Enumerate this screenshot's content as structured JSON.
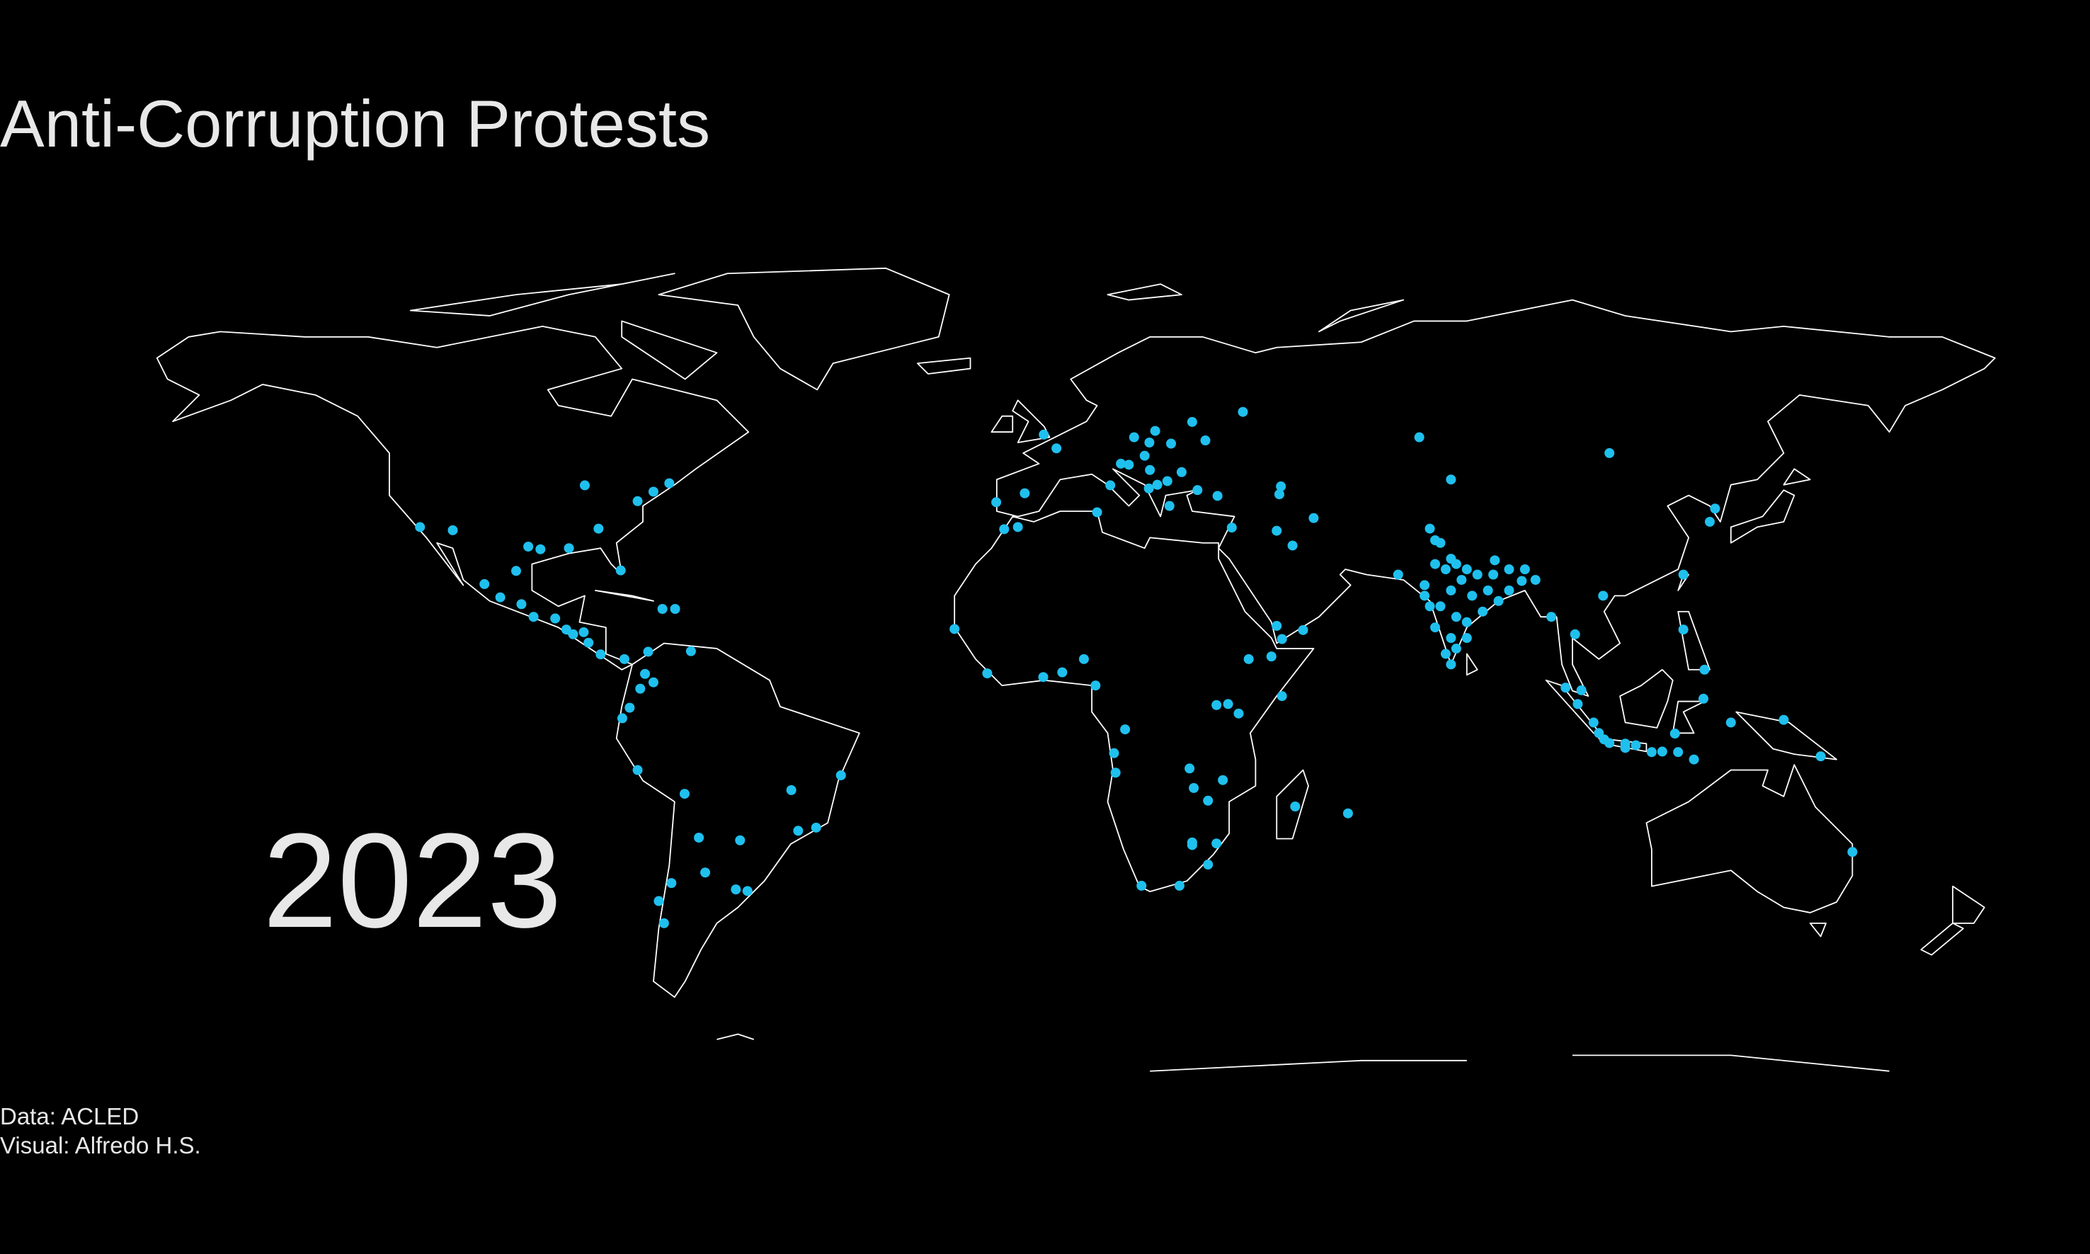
{
  "title": "Anti-Corruption Protests",
  "year": "2023",
  "credits": [
    "Data: ACLED",
    "Visual: Alfredo H.S."
  ],
  "events": [
    {
      "lon": 77,
      "lat": 28
    },
    {
      "lon": 78,
      "lat": 27
    },
    {
      "lon": 80,
      "lat": 26
    },
    {
      "lon": 82,
      "lat": 25
    },
    {
      "lon": 85,
      "lat": 25
    },
    {
      "lon": 88,
      "lat": 22
    },
    {
      "lon": 73,
      "lat": 19
    },
    {
      "lon": 75,
      "lat": 19
    },
    {
      "lon": 77,
      "lat": 13
    },
    {
      "lon": 80,
      "lat": 13
    },
    {
      "lon": 78,
      "lat": 17
    },
    {
      "lon": 76,
      "lat": 10
    },
    {
      "lon": 72,
      "lat": 23
    },
    {
      "lon": 75,
      "lat": 31
    },
    {
      "lon": 77,
      "lat": 22
    },
    {
      "lon": 81,
      "lat": 21
    },
    {
      "lon": 84,
      "lat": 22
    },
    {
      "lon": 86,
      "lat": 20
    },
    {
      "lon": 83,
      "lat": 18
    },
    {
      "lon": 79,
      "lat": 24
    },
    {
      "lon": 76,
      "lat": 26
    },
    {
      "lon": 74,
      "lat": 27
    },
    {
      "lon": 80,
      "lat": 16
    },
    {
      "lon": 77,
      "lat": 8
    },
    {
      "lon": 74,
      "lat": 15
    },
    {
      "lon": 88,
      "lat": 26
    },
    {
      "lon": 91,
      "lat": 26
    },
    {
      "lon": 93,
      "lat": 24
    },
    {
      "lon": 72,
      "lat": 21
    },
    {
      "lon": 78,
      "lat": 11
    },
    {
      "lon": 106,
      "lat": -6.2
    },
    {
      "lon": 107,
      "lat": -6.9
    },
    {
      "lon": 110,
      "lat": -7
    },
    {
      "lon": 112,
      "lat": -7.3
    },
    {
      "lon": 115,
      "lat": -8.6
    },
    {
      "lon": 117,
      "lat": -8.5
    },
    {
      "lon": 120,
      "lat": -8.6
    },
    {
      "lon": 110,
      "lat": -7.8
    },
    {
      "lon": 98.7,
      "lat": 3.6
    },
    {
      "lon": 101,
      "lat": 0.5
    },
    {
      "lon": 104,
      "lat": -3
    },
    {
      "lon": 105,
      "lat": -5
    },
    {
      "lon": 119.4,
      "lat": -5.1
    },
    {
      "lon": 124.8,
      "lat": 1.5
    },
    {
      "lon": 130,
      "lat": -3
    },
    {
      "lon": 140,
      "lat": -2.5
    },
    {
      "lon": 123,
      "lat": -10
    },
    {
      "lon": 121,
      "lat": 14.6
    },
    {
      "lon": 125,
      "lat": 7
    },
    {
      "lon": 101.7,
      "lat": 3.1
    },
    {
      "lon": 100.5,
      "lat": 13.7
    },
    {
      "lon": 105.8,
      "lat": 21
    },
    {
      "lon": 96,
      "lat": 17
    },
    {
      "lon": 90.4,
      "lat": 23.8
    },
    {
      "lon": 85.3,
      "lat": 27.7
    },
    {
      "lon": 67,
      "lat": 25
    },
    {
      "lon": 74,
      "lat": 31.5
    },
    {
      "lon": 73,
      "lat": 33.7
    },
    {
      "lon": 127,
      "lat": 37.5
    },
    {
      "lon": 126,
      "lat": 35
    },
    {
      "lon": 121,
      "lat": 25
    },
    {
      "lon": 107,
      "lat": 48
    },
    {
      "lon": 71,
      "lat": 51
    },
    {
      "lon": 77,
      "lat": 43
    },
    {
      "lon": 44,
      "lat": 33.3
    },
    {
      "lon": 47,
      "lat": 30.5
    },
    {
      "lon": 35.5,
      "lat": 33.9
    },
    {
      "lon": 51,
      "lat": 35.7
    },
    {
      "lon": 32.8,
      "lat": 39.9
    },
    {
      "lon": 29,
      "lat": 41
    },
    {
      "lon": 44,
      "lat": 15.3
    },
    {
      "lon": 45,
      "lat": 12.8
    },
    {
      "lon": 49,
      "lat": 14.5
    },
    {
      "lon": 45,
      "lat": 2
    },
    {
      "lon": 43,
      "lat": 9.5
    },
    {
      "lon": 36.8,
      "lat": -1.3
    },
    {
      "lon": 34.8,
      "lat": 0.5
    },
    {
      "lon": 32.6,
      "lat": 0.3
    },
    {
      "lon": 38.7,
      "lat": 9
    },
    {
      "lon": 3.4,
      "lat": 6.5
    },
    {
      "lon": 7.5,
      "lat": 9
    },
    {
      "lon": -0.2,
      "lat": 5.6
    },
    {
      "lon": -10.8,
      "lat": 6.3
    },
    {
      "lon": -17,
      "lat": 14.7
    },
    {
      "lon": -7.6,
      "lat": 33.6
    },
    {
      "lon": -5,
      "lat": 34
    },
    {
      "lon": 10,
      "lat": 36.8
    },
    {
      "lon": 9.7,
      "lat": 4
    },
    {
      "lon": 15.3,
      "lat": -4.3
    },
    {
      "lon": 27.5,
      "lat": -11.7
    },
    {
      "lon": 13.2,
      "lat": -8.8
    },
    {
      "lon": 13.5,
      "lat": -12.5
    },
    {
      "lon": 28.3,
      "lat": -15.4
    },
    {
      "lon": 31,
      "lat": -17.8
    },
    {
      "lon": 33.8,
      "lat": -13.9
    },
    {
      "lon": 32.6,
      "lat": -25.9
    },
    {
      "lon": 28,
      "lat": -26.2
    },
    {
      "lon": 31,
      "lat": -29.9
    },
    {
      "lon": 18.4,
      "lat": -33.9
    },
    {
      "lon": 25.6,
      "lat": -33.9
    },
    {
      "lon": 28,
      "lat": -25.7
    },
    {
      "lon": 47.5,
      "lat": -18.9
    },
    {
      "lon": 57.5,
      "lat": -20.2
    },
    {
      "lon": 21,
      "lat": 52.2
    },
    {
      "lon": 19.9,
      "lat": 50
    },
    {
      "lon": 17,
      "lat": 51
    },
    {
      "lon": 20,
      "lat": 44.8
    },
    {
      "lon": 19,
      "lat": 47.5
    },
    {
      "lon": 26,
      "lat": 44.4
    },
    {
      "lon": 23.3,
      "lat": 42.7
    },
    {
      "lon": 21.4,
      "lat": 42
    },
    {
      "lon": 19.8,
      "lat": 41.3
    },
    {
      "lon": 14.5,
      "lat": 46
    },
    {
      "lon": 16,
      "lat": 45.8
    },
    {
      "lon": 30.5,
      "lat": 50.4
    },
    {
      "lon": 24,
      "lat": 49.8
    },
    {
      "lon": 37.6,
      "lat": 55.8
    },
    {
      "lon": 44.5,
      "lat": 40.2
    },
    {
      "lon": 44.8,
      "lat": 41.7
    },
    {
      "lon": 2.3,
      "lat": 48.9
    },
    {
      "lon": -3.7,
      "lat": 40.4
    },
    {
      "lon": 12.5,
      "lat": 41.9
    },
    {
      "lon": 23.7,
      "lat": 38
    },
    {
      "lon": -0.1,
      "lat": 51.5
    },
    {
      "lon": -9.1,
      "lat": 38.7
    },
    {
      "lon": 28,
      "lat": 53.9
    },
    {
      "lon": -99,
      "lat": 19.4
    },
    {
      "lon": -103,
      "lat": 20.7
    },
    {
      "lon": -100,
      "lat": 25.7
    },
    {
      "lon": -106,
      "lat": 23.2
    },
    {
      "lon": -96.7,
      "lat": 17
    },
    {
      "lon": -92.6,
      "lat": 16.7
    },
    {
      "lon": -90.5,
      "lat": 14.6
    },
    {
      "lon": -89.2,
      "lat": 13.7
    },
    {
      "lon": -87.2,
      "lat": 14.1
    },
    {
      "lon": -86.3,
      "lat": 12.1
    },
    {
      "lon": -84,
      "lat": 9.9
    },
    {
      "lon": -79.5,
      "lat": 9
    },
    {
      "lon": -74,
      "lat": 4.6
    },
    {
      "lon": -75.6,
      "lat": 6.2
    },
    {
      "lon": -76.5,
      "lat": 3.4
    },
    {
      "lon": -66.9,
      "lat": 10.5
    },
    {
      "lon": -72.3,
      "lat": 18.5
    },
    {
      "lon": -69.9,
      "lat": 18.5
    },
    {
      "lon": -78.5,
      "lat": -0.2
    },
    {
      "lon": -79.9,
      "lat": -2.2
    },
    {
      "lon": -77,
      "lat": -12
    },
    {
      "lon": -68.1,
      "lat": -16.5
    },
    {
      "lon": -57.6,
      "lat": -25.3
    },
    {
      "lon": -47.9,
      "lat": -15.8
    },
    {
      "lon": -46.6,
      "lat": -23.5
    },
    {
      "lon": -43.2,
      "lat": -22.9
    },
    {
      "lon": -58.4,
      "lat": -34.6
    },
    {
      "lon": -56.2,
      "lat": -34.9
    },
    {
      "lon": -70.6,
      "lat": -33.4
    },
    {
      "lon": -73,
      "lat": -36.8
    },
    {
      "lon": -72,
      "lat": -41
    },
    {
      "lon": -64.2,
      "lat": -31.4
    },
    {
      "lon": -65.4,
      "lat": -24.8
    },
    {
      "lon": -38.5,
      "lat": -13
    },
    {
      "lon": -87,
      "lat": 41.9
    },
    {
      "lon": -77,
      "lat": 38.9
    },
    {
      "lon": -74,
      "lat": 40.7
    },
    {
      "lon": -71,
      "lat": 42.3
    },
    {
      "lon": -84.4,
      "lat": 33.7
    },
    {
      "lon": -95.4,
      "lat": 29.8
    },
    {
      "lon": -97.7,
      "lat": 30.3
    },
    {
      "lon": -90,
      "lat": 30
    },
    {
      "lon": -118.2,
      "lat": 34
    },
    {
      "lon": -112,
      "lat": 33.4
    },
    {
      "lon": -75,
      "lat": 10.4
    },
    {
      "lon": -80.2,
      "lat": 25.8
    },
    {
      "lon": 153,
      "lat": -27.5
    },
    {
      "lon": 147,
      "lat": -9.4
    }
  ]
}
